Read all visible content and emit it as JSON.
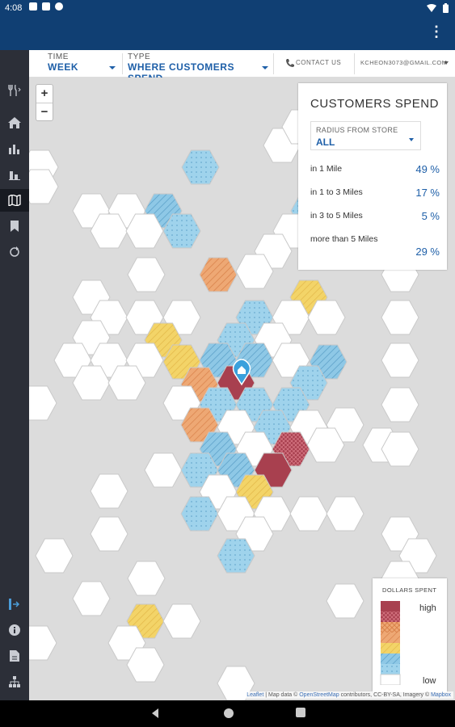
{
  "status_bar": {
    "time": "4:08",
    "icons": [
      "sim-icon",
      "notification-icon",
      "data-saver-icon"
    ],
    "right_icons": [
      "wifi-icon",
      "battery-icon"
    ]
  },
  "app_bar": {
    "menu_icon": "more-vert-icon"
  },
  "sidebar": {
    "items": [
      {
        "name": "restaurant-icon",
        "active": false
      },
      {
        "name": "home-icon",
        "active": false
      },
      {
        "name": "bar-chart-icon",
        "active": false
      },
      {
        "name": "people-chart-icon",
        "active": false
      },
      {
        "name": "map-icon",
        "active": true
      },
      {
        "name": "bookmark-icon",
        "active": false
      },
      {
        "name": "refresh-icon",
        "active": false
      }
    ],
    "bottom_items": [
      "logout-icon",
      "info-icon",
      "document-icon",
      "org-chart-icon"
    ]
  },
  "toolbar": {
    "time_label": "TIME",
    "time_value": "WEEK",
    "type_label": "TYPE",
    "type_value": "WHERE CUSTOMERS SPEND",
    "contact": "CONTACT US",
    "email": "KCHEON3073@GMAIL.COM"
  },
  "map": {
    "zoom_in": "+",
    "zoom_out": "−",
    "attribution": {
      "leaflet": "Leaflet",
      "text1": " | Map data © ",
      "osm": "OpenStreetMap",
      "text2": " contributors, CC-BY-SA, Imagery © ",
      "mapbox": "Mapbox"
    }
  },
  "spend_card": {
    "title": "CUSTOMERS SPEND",
    "radius_label": "RADIUS FROM STORE",
    "radius_value": "ALL",
    "rows": [
      {
        "label": "in 1 Mile",
        "value": "49 %"
      },
      {
        "label": "in 1 to 3 Miles",
        "value": "17 %"
      },
      {
        "label": "in 3 to 5 Miles",
        "value": "5 %"
      },
      {
        "label": "more than 5 Miles",
        "value": "29 %"
      }
    ]
  },
  "legend": {
    "title": "DOLLARS SPENT",
    "high": "high",
    "low": "low"
  },
  "colors": {
    "header": "#103f73",
    "accent": "#1e5fa8",
    "red": "#a8404f",
    "orange": "#e89a67",
    "yellow": "#f3d468",
    "blue": "#8fcae8",
    "light_blue": "#a8d8ec"
  }
}
